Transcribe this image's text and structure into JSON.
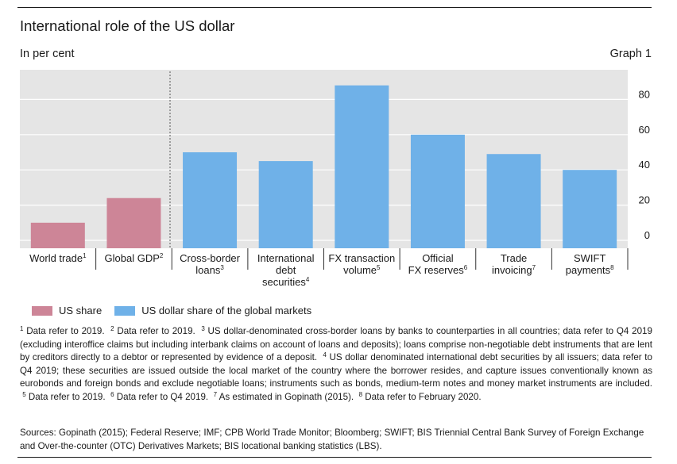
{
  "header": {
    "title": "International role of the US dollar",
    "unit": "In per cent",
    "graph_number": "Graph 1"
  },
  "chart_data": {
    "type": "bar",
    "title": "International role of the US dollar",
    "ylabel": "In per cent",
    "ylim": [
      0,
      100
    ],
    "yticks": [
      0,
      20,
      40,
      60,
      80
    ],
    "y_axis_side": "right",
    "categories": [
      {
        "lines": [
          "World trade"
        ],
        "note": "1"
      },
      {
        "lines": [
          "Global GDP"
        ],
        "note": "2"
      },
      {
        "lines": [
          "Cross-border",
          "loans"
        ],
        "note": "3"
      },
      {
        "lines": [
          "International",
          "debt",
          "securities"
        ],
        "note": "4"
      },
      {
        "lines": [
          "FX transaction",
          "volume"
        ],
        "note": "5"
      },
      {
        "lines": [
          "Official",
          "FX reserves"
        ],
        "note": "6"
      },
      {
        "lines": [
          "Trade",
          "invoicing"
        ],
        "note": "7"
      },
      {
        "lines": [
          "SWIFT",
          "payments"
        ],
        "note": "8"
      }
    ],
    "series": [
      {
        "name": "US share",
        "color": "#cd8597",
        "values": [
          10,
          24,
          null,
          null,
          null,
          null,
          null,
          null
        ]
      },
      {
        "name": "US dollar share of the global markets",
        "color": "#6fb1e8",
        "values": [
          null,
          null,
          50,
          45,
          88,
          60,
          49,
          40
        ]
      }
    ],
    "legend_position": "bottom-left"
  },
  "notes": [
    {
      "num": "1",
      "text": "Data refer to 2019."
    },
    {
      "num": "2",
      "text": "Data refer to 2019."
    },
    {
      "num": "3",
      "text": "US dollar-denominated cross-border loans by banks to counterparties in all countries; data refer to Q4 2019 (excluding interoffice claims but including interbank claims on account of loans and deposits); loans comprise non-negotiable debt instruments that are lent by creditors directly to a debtor or represented by evidence of a deposit."
    },
    {
      "num": "4",
      "text": "US dollar denominated international debt securities by all issuers; data refer to Q4 2019; these securities are issued outside the local market of the country where the borrower resides, and capture issues conventionally known as eurobonds and foreign bonds and exclude negotiable loans; instruments such as bonds, medium-term notes and money market instruments are included."
    },
    {
      "num": "5",
      "text": "Data refer to 2019."
    },
    {
      "num": "6",
      "text": "Data refer to Q4 2019."
    },
    {
      "num": "7",
      "text": "As estimated in Gopinath (2015)."
    },
    {
      "num": "8",
      "text": "Data refer to February 2020."
    }
  ],
  "sources": "Sources: Gopinath (2015); Federal Reserve; IMF; CPB World Trade Monitor; Bloomberg; SWIFT; BIS Triennial Central Bank Survey of Foreign Exchange and Over-the-counter (OTC) Derivatives Markets; BIS locational banking statistics (LBS)."
}
